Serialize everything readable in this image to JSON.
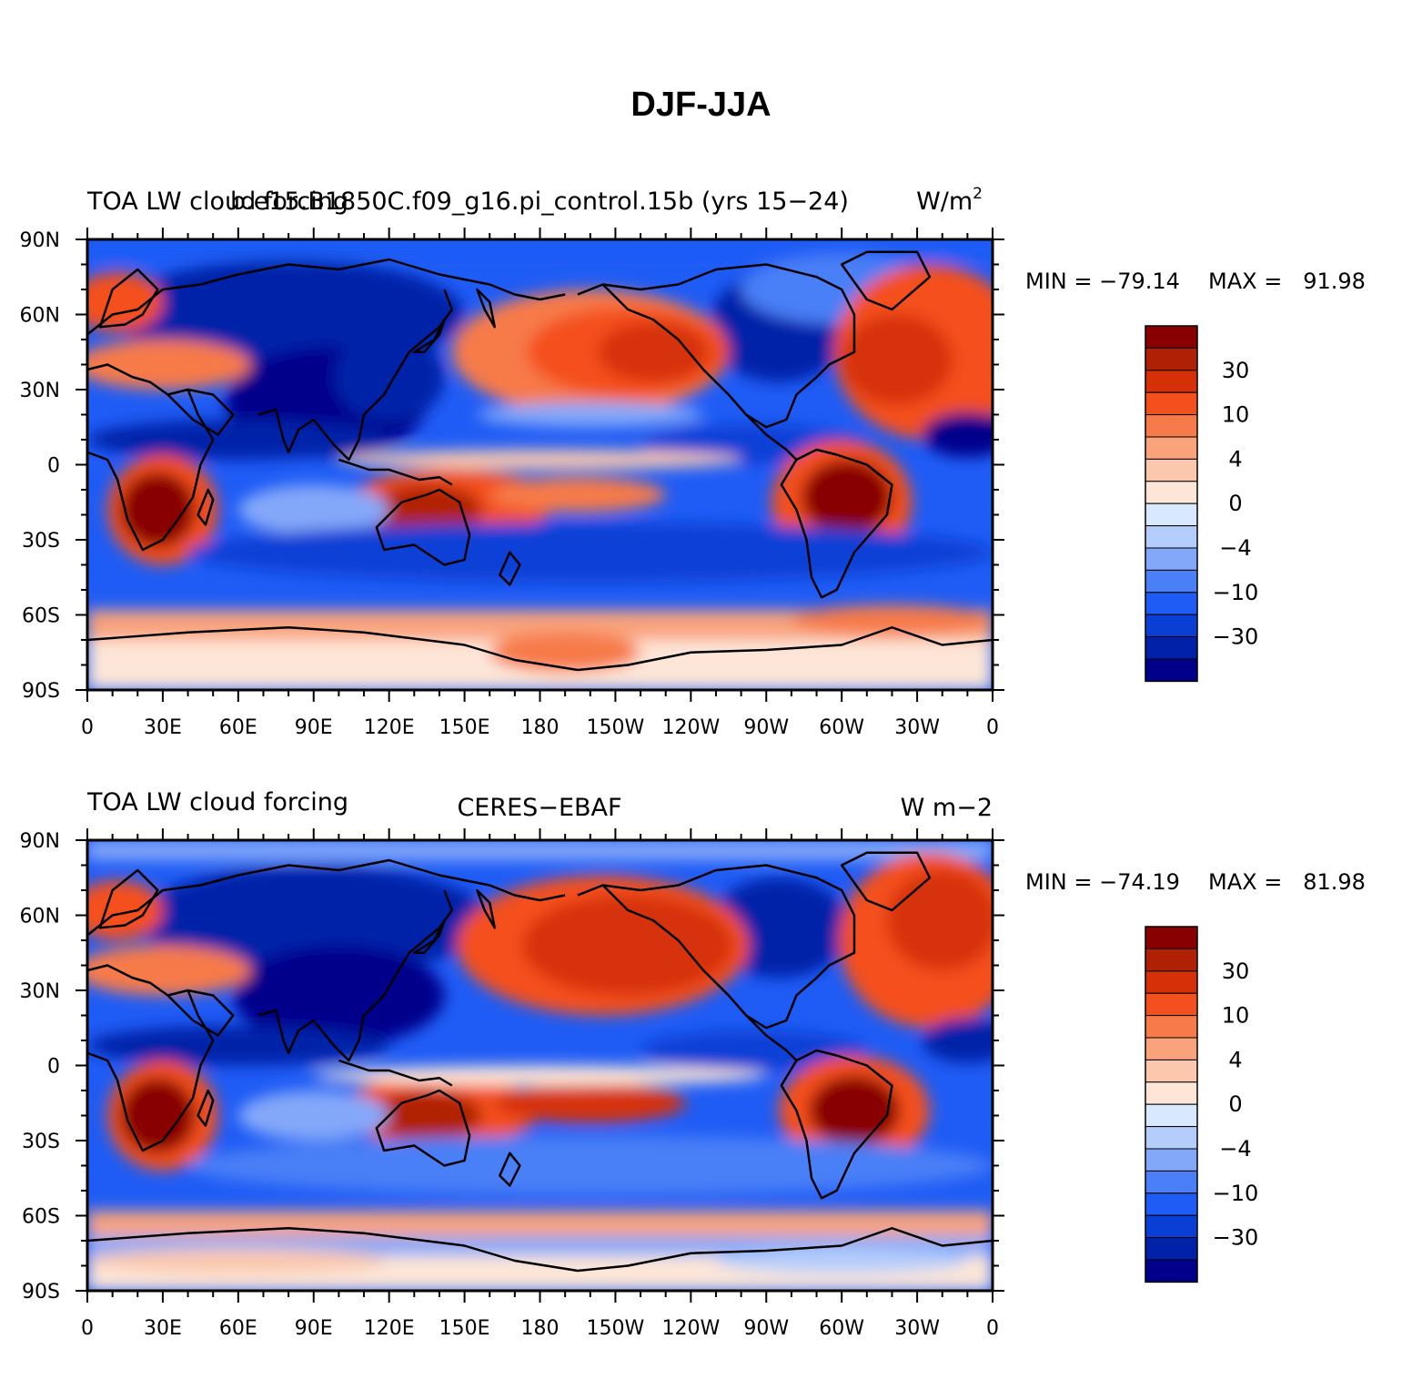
{
  "figure_title": "DJF-JJA",
  "colors": [
    "#00008b",
    "#0021a8",
    "#0a3fd6",
    "#1f5cf5",
    "#4a7ff7",
    "#84a8f9",
    "#b4cdfb",
    "#d8e8fd",
    "#fde6d8",
    "#fbc8ae",
    "#f9a27c",
    "#f77a4a",
    "#f4501e",
    "#d63008",
    "#b02005",
    "#880000"
  ],
  "colorbar_labels": [
    "30",
    "10",
    "4",
    "0",
    "−4",
    "−10",
    "−30"
  ],
  "lon_labels": [
    "0",
    "30E",
    "60E",
    "90E",
    "120E",
    "150E",
    "180",
    "150W",
    "120W",
    "90W",
    "60W",
    "30W",
    "0"
  ],
  "lat_labels": [
    "90N",
    "60N",
    "30N",
    "0",
    "30S",
    "60S",
    "90S"
  ],
  "panels": [
    {
      "id": "model",
      "left_title": "TOA LW cloud forcing",
      "center_title": "b.e15.B1850C.f09_g16.pi_control.15b (yrs 15−24)",
      "right_title": "W/m",
      "right_title_sup": "2",
      "min_label": "MIN = −79.14",
      "max_label": "MAX =   91.98"
    },
    {
      "id": "obs",
      "left_title": "TOA LW cloud forcing",
      "center_title": "CERES−EBAF",
      "right_title": "W m−2",
      "right_title_sup": "",
      "min_label": "MIN = −74.19",
      "max_label": "MAX =   81.98"
    }
  ],
  "chart_data": [
    {
      "type": "heatmap",
      "title": "DJF-JJA",
      "subtitle": "b.e15.B1850C.f09_g16.pi_control.15b (yrs 15−24)",
      "variable": "TOA LW cloud forcing",
      "units": "W/m2",
      "min": -79.14,
      "max": 91.98,
      "xlim": [
        0,
        360
      ],
      "ylim": [
        -90,
        90
      ],
      "colorbar_ticks": [
        30,
        10,
        4,
        0,
        -4,
        -10,
        -30
      ]
    },
    {
      "type": "heatmap",
      "title": "DJF-JJA",
      "subtitle": "CERES−EBAF",
      "variable": "TOA LW cloud forcing",
      "units": "W m−2",
      "min": -74.19,
      "max": 81.98,
      "xlim": [
        0,
        360
      ],
      "ylim": [
        -90,
        90
      ],
      "colorbar_ticks": [
        30,
        10,
        4,
        0,
        -4,
        -10,
        -30
      ]
    }
  ]
}
